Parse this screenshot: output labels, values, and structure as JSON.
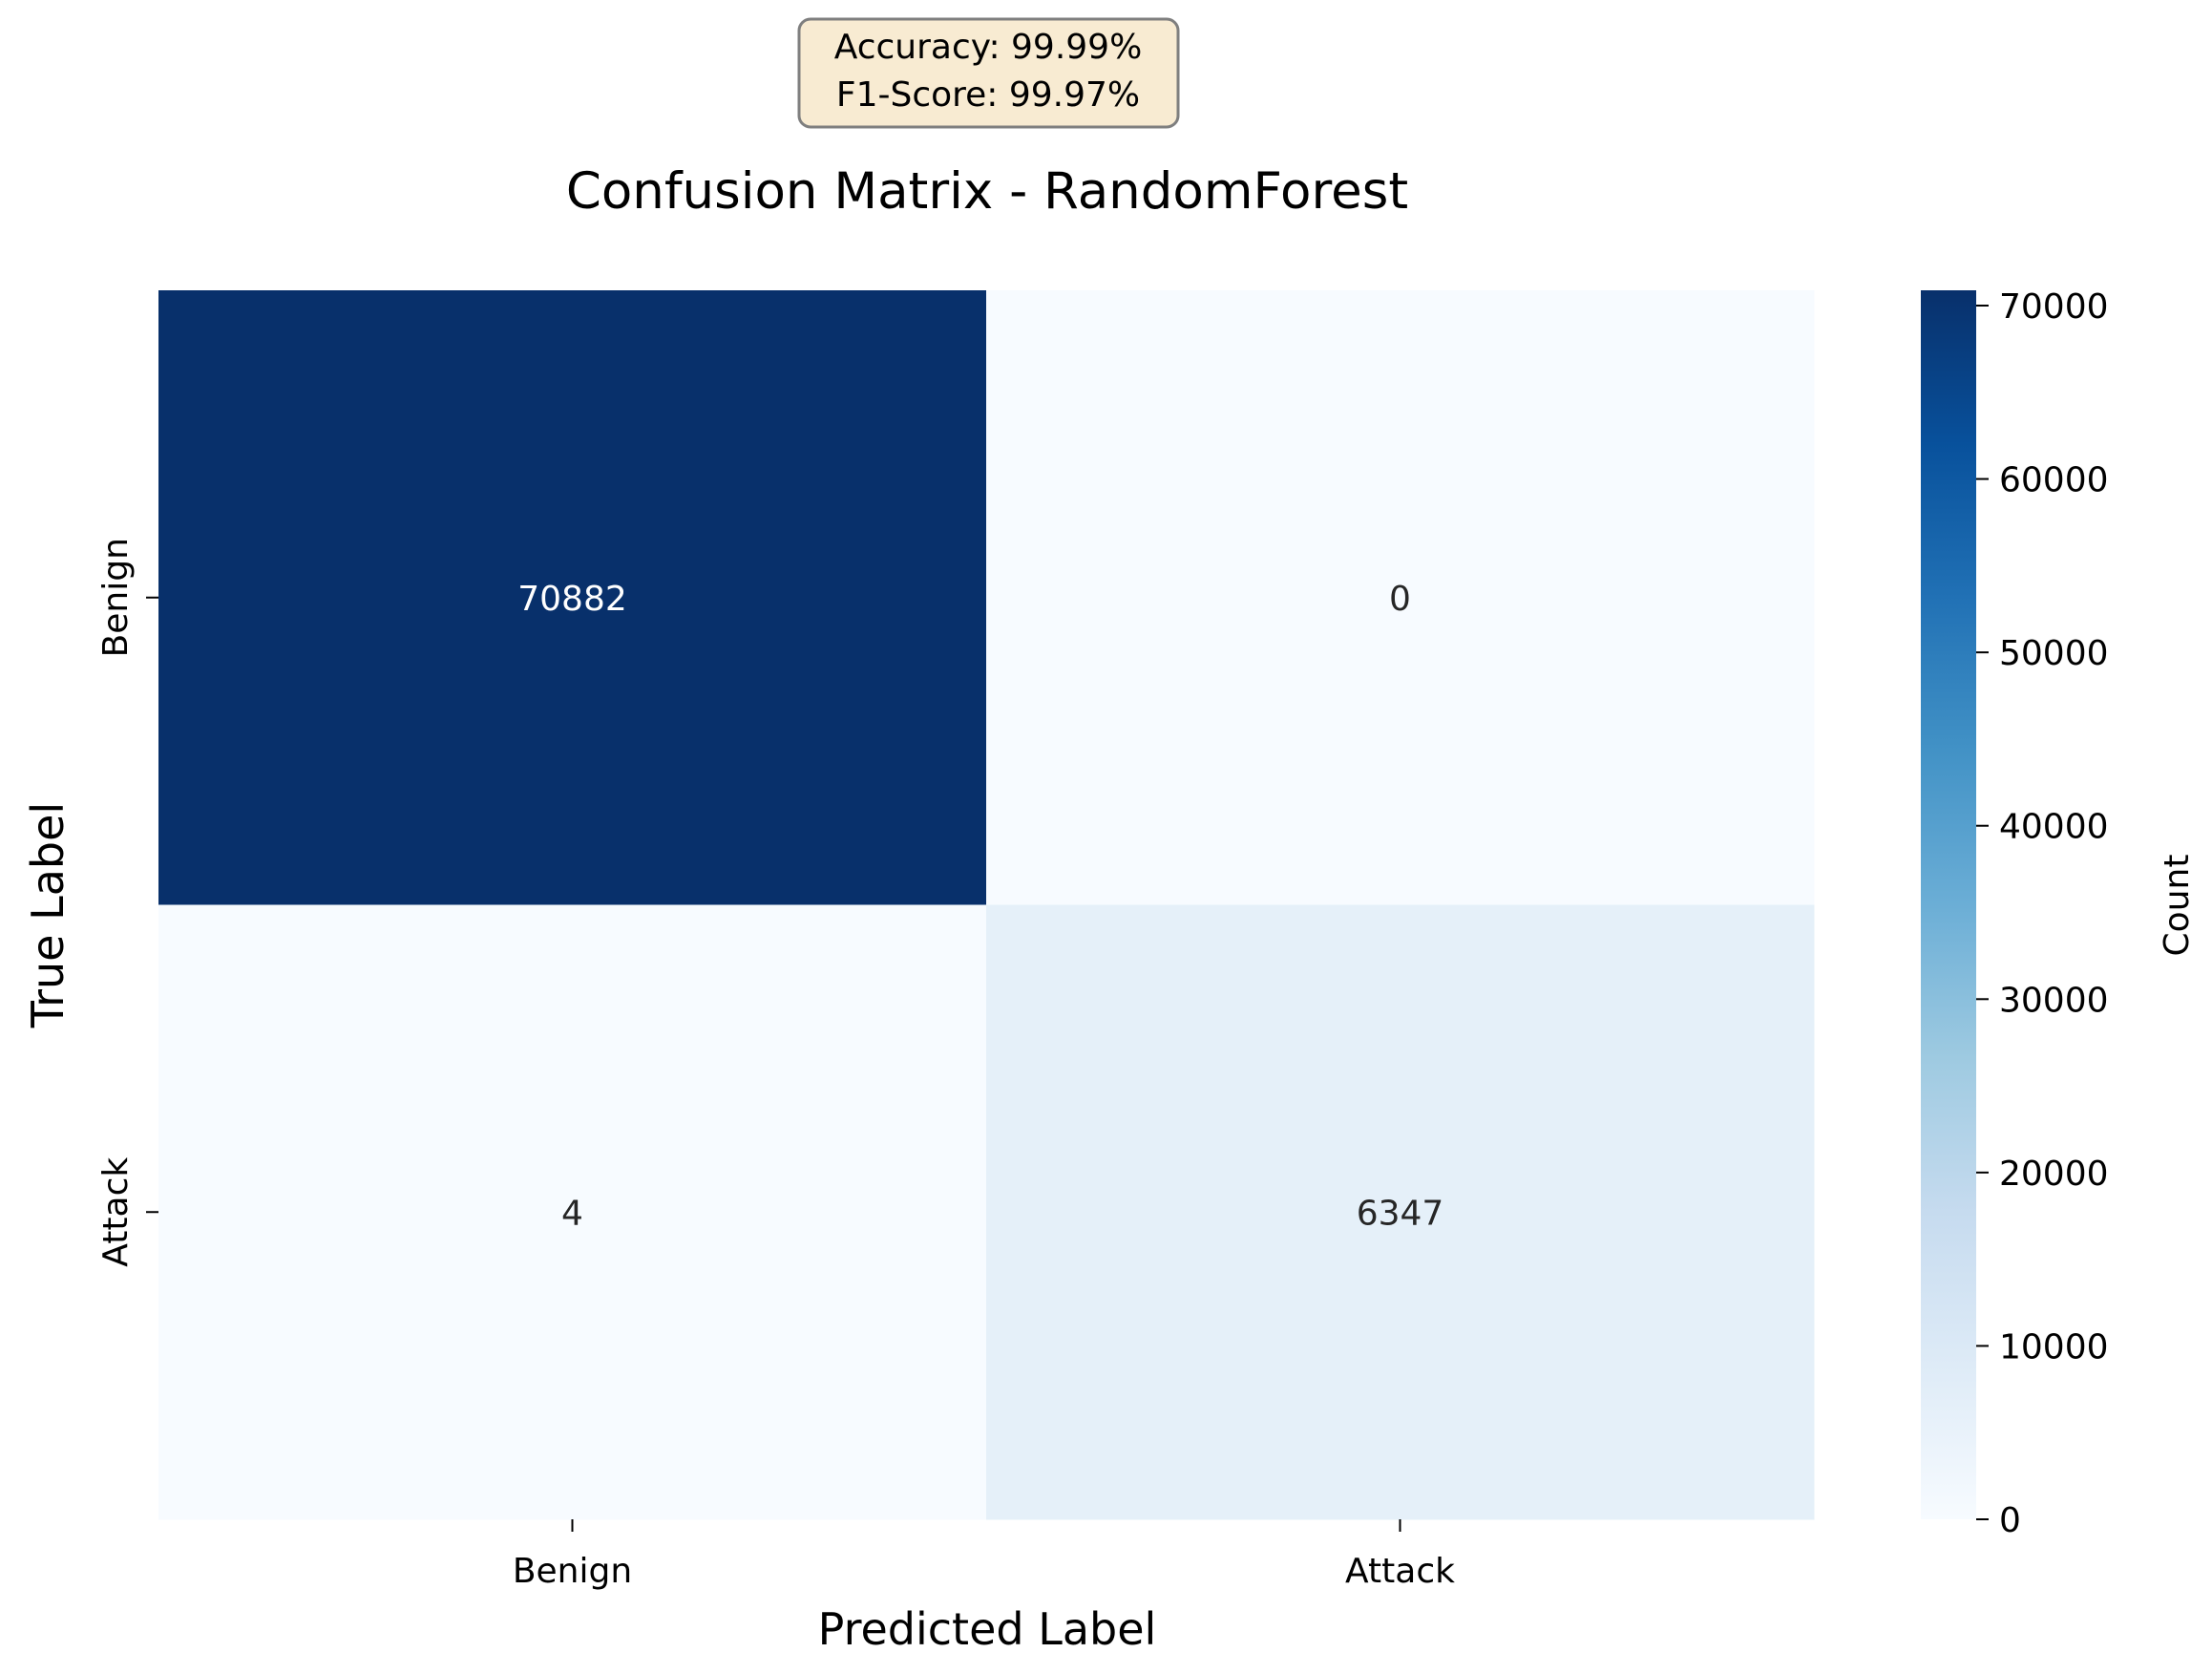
{
  "chart_data": {
    "type": "heatmap",
    "title": "Confusion Matrix - RandomForest",
    "xlabel": "Predicted Label",
    "ylabel": "True Label",
    "x_categories": [
      "Benign",
      "Attack"
    ],
    "y_categories": [
      "Benign",
      "Attack"
    ],
    "matrix": [
      [
        70882,
        0
      ],
      [
        4,
        6347
      ]
    ],
    "colorbar": {
      "label": "Count",
      "range": [
        0,
        70882
      ],
      "ticks": [
        0,
        10000,
        20000,
        30000,
        40000,
        50000,
        60000,
        70000
      ],
      "tick_labels": [
        "0",
        "10000",
        "20000",
        "30000",
        "40000",
        "50000",
        "60000",
        "70000"
      ],
      "colormap": "Blues",
      "low_color": "#f7fbff",
      "high_color": "#08306b"
    },
    "annotation_box": {
      "lines": [
        "Accuracy: 99.99%",
        "F1-Score: 99.97%"
      ],
      "background": "#f8ebd2",
      "border": "#7f7f7f"
    }
  }
}
